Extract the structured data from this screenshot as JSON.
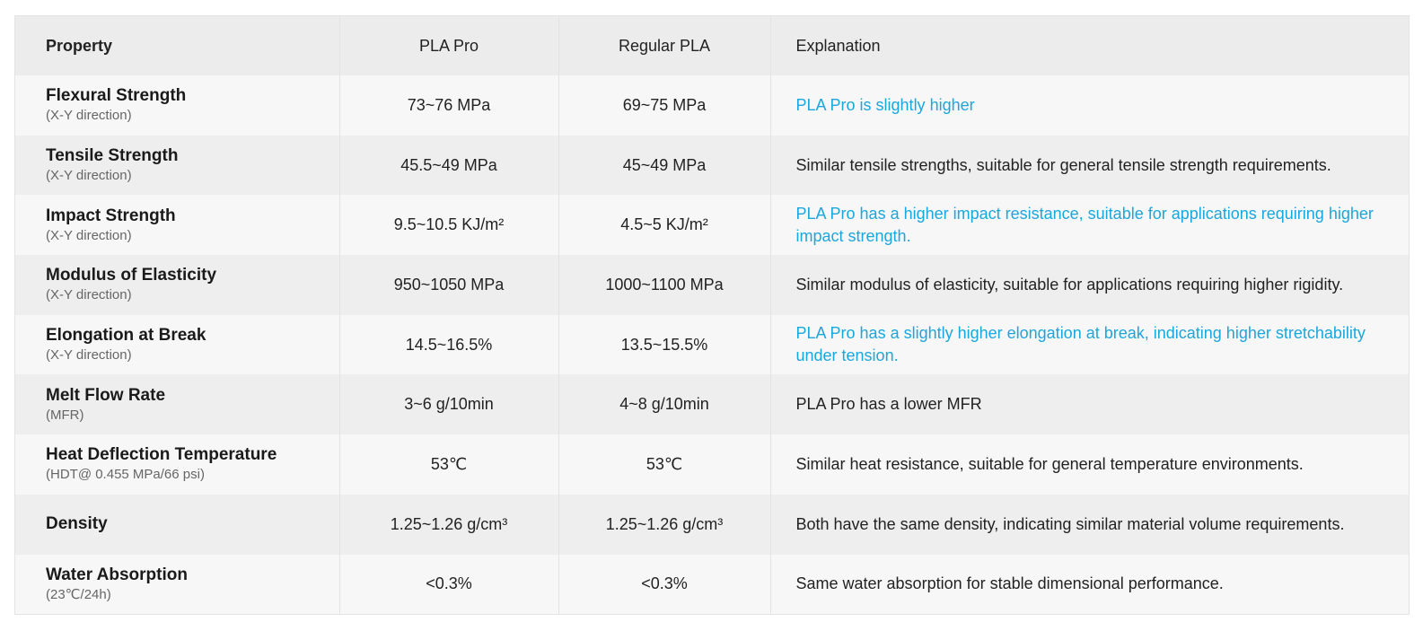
{
  "colors": {
    "highlight": "#1ba6dc",
    "header_bg": "#ececec",
    "row_odd": "#f7f7f7",
    "row_even": "#eeeeee"
  },
  "header": {
    "property": "Property",
    "pla_pro": "PLA Pro",
    "regular_pla": "Regular PLA",
    "explanation": "Explanation"
  },
  "rows": [
    {
      "name": "Flexural Strength",
      "sub": "(X-Y direction)",
      "pla_pro": "73~76 MPa",
      "regular_pla": "69~75 MPa",
      "explanation": "PLA Pro is slightly higher",
      "highlight": true
    },
    {
      "name": "Tensile Strength",
      "sub": "(X-Y direction)",
      "pla_pro": "45.5~49 MPa",
      "regular_pla": "45~49 MPa",
      "explanation": "Similar tensile strengths, suitable for general tensile strength requirements.",
      "highlight": false
    },
    {
      "name": "Impact Strength",
      "sub": "(X-Y direction)",
      "pla_pro": "9.5~10.5 KJ/m²",
      "regular_pla": "4.5~5 KJ/m²",
      "explanation": "PLA Pro has a higher impact resistance, suitable for applications requiring higher impact strength.",
      "highlight": true
    },
    {
      "name": "Modulus of Elasticity",
      "sub": "(X-Y direction)",
      "pla_pro": "950~1050 MPa",
      "regular_pla": "1000~1100 MPa",
      "explanation": "Similar modulus of elasticity, suitable for applications requiring higher rigidity.",
      "highlight": false
    },
    {
      "name": "Elongation at Break",
      "sub": "(X-Y direction)",
      "pla_pro": "14.5~16.5%",
      "regular_pla": "13.5~15.5%",
      "explanation": "PLA Pro has a slightly higher elongation at break, indicating higher stretchability under tension.",
      "highlight": true
    },
    {
      "name": "Melt Flow Rate",
      "sub": "(MFR)",
      "pla_pro": "3~6 g/10min",
      "regular_pla": "4~8 g/10min",
      "explanation": "PLA Pro has a lower MFR",
      "highlight": false
    },
    {
      "name": "Heat Deflection Temperature",
      "sub": "(HDT@ 0.455 MPa/66 psi)",
      "pla_pro": "53℃",
      "regular_pla": "53℃",
      "explanation": "Similar heat resistance, suitable for general temperature environments.",
      "highlight": false
    },
    {
      "name": "Density",
      "sub": "",
      "pla_pro": "1.25~1.26 g/cm³",
      "regular_pla": "1.25~1.26 g/cm³",
      "explanation": "Both have the same density, indicating similar material volume requirements.",
      "highlight": false
    },
    {
      "name": "Water Absorption",
      "sub": "(23℃/24h)",
      "pla_pro": "<0.3%",
      "regular_pla": "<0.3%",
      "explanation": "Same water absorption for stable dimensional performance.",
      "highlight": false
    }
  ]
}
